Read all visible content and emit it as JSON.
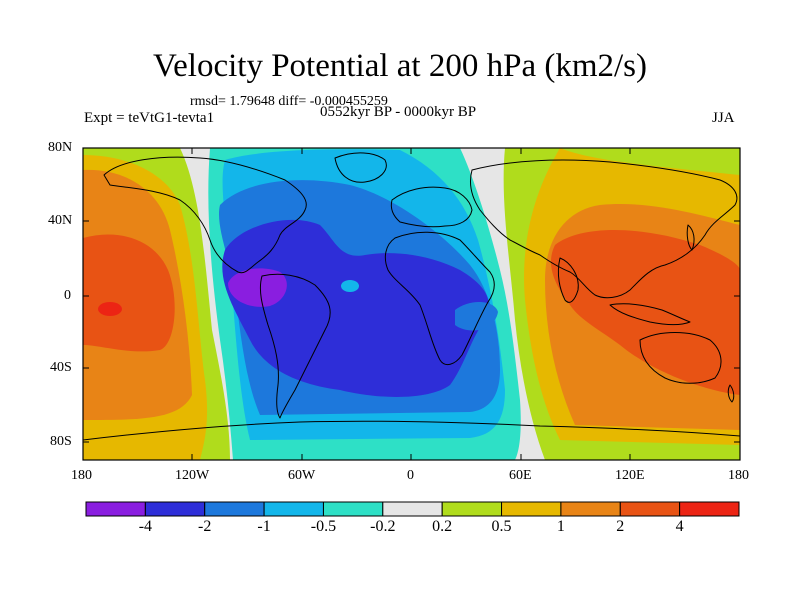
{
  "title": "Velocity Potential at 200 hPa (km2/s)",
  "stats": "rmsd= 1.79648  diff= -0.000455259",
  "experiment": "Expt = teVtG1-tevta1",
  "period": "0552kyr BP - 0000kyr BP",
  "season": "JJA",
  "map": {
    "lat_ticks": [
      "80N",
      "40N",
      "0",
      "40S",
      "80S"
    ],
    "lon_ticks": [
      "180",
      "120W",
      "60W",
      "0",
      "60E",
      "120E",
      "180"
    ]
  },
  "colorbar": {
    "colors": [
      "#8a1ee0",
      "#2e2ed8",
      "#1d78dc",
      "#13b6ea",
      "#2ee0c6",
      "#e6e6e6",
      "#b0dc1c",
      "#e6b800",
      "#e88416",
      "#e85314",
      "#ec2414"
    ],
    "labels": [
      "-4",
      "-2",
      "-1",
      "-0.5",
      "-0.2",
      "0.2",
      "0.5",
      "1",
      "2",
      "4"
    ]
  }
}
